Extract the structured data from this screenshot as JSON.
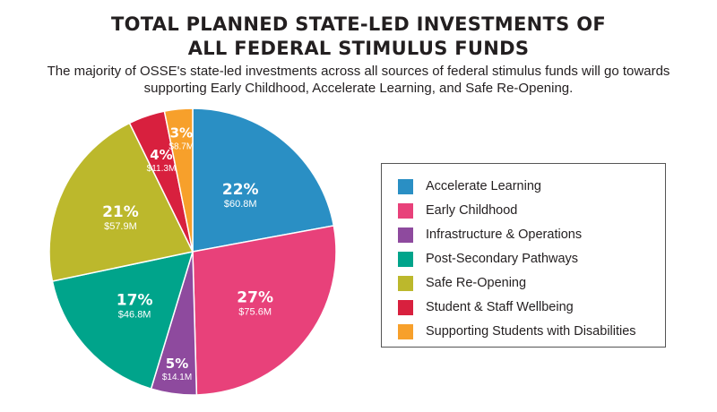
{
  "title_line1": "TOTAL PLANNED STATE-LED INVESTMENTS OF",
  "title_line2": "ALL FEDERAL STIMULUS FUNDS",
  "subtitle_line1": "The majority of OSSE's state-led investments across all sources of federal stimulus funds will go towards",
  "subtitle_line2": "supporting Early Childhood, Accelerate Learning, and Safe Re-Opening.",
  "chart_data": {
    "type": "pie",
    "legend_position": "right",
    "slices": [
      {
        "name": "Accelerate Learning",
        "percent_label": "22%",
        "value_label": "$60.8M",
        "value": 60.8,
        "color": "#2a8fc4"
      },
      {
        "name": "Early Childhood",
        "percent_label": "27%",
        "value_label": "$75.6M",
        "value": 75.6,
        "color": "#e8417a"
      },
      {
        "name": "Infrastructure & Operations",
        "percent_label": "5%",
        "value_label": "$14.1M",
        "value": 14.1,
        "color": "#8e4a9e"
      },
      {
        "name": "Post-Secondary Pathways",
        "percent_label": "17%",
        "value_label": "$46.8M",
        "value": 46.8,
        "color": "#00a48b"
      },
      {
        "name": "Safe Re-Opening",
        "percent_label": "21%",
        "value_label": "$57.9M",
        "value": 57.9,
        "color": "#bcb82c"
      },
      {
        "name": "Student & Staff Wellbeing",
        "percent_label": "4%",
        "value_label": "$11.3M",
        "value": 11.3,
        "color": "#d8203e"
      },
      {
        "name": "Supporting Students with Disabilities",
        "percent_label": "3%",
        "value_label": "$8.7M",
        "value": 8.7,
        "color": "#f7a02b"
      }
    ]
  }
}
